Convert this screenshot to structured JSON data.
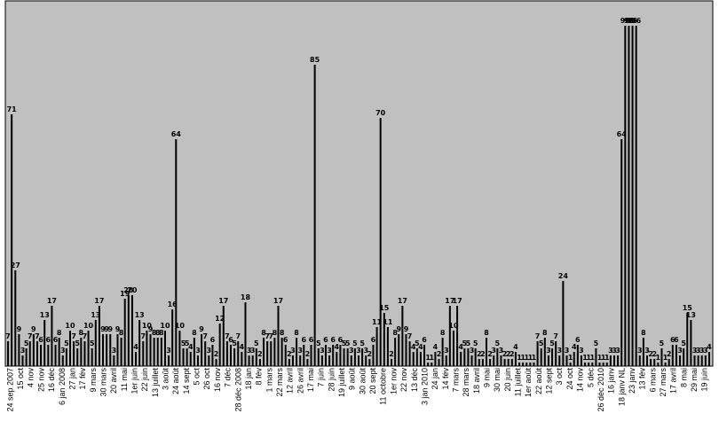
{
  "chart_data": {
    "type": "bar",
    "title": "",
    "xlabel": "",
    "ylabel": "",
    "ylim": [
      0,
      100
    ],
    "grid": false,
    "legend": "none",
    "colors": {
      "plot_background": "#c0c0c0",
      "bar": "#000000",
      "page": "#ffffff"
    },
    "values": [
      7,
      71,
      27,
      9,
      3,
      5,
      7,
      9,
      7,
      6,
      13,
      6,
      17,
      6,
      8,
      3,
      5,
      10,
      7,
      5,
      8,
      7,
      10,
      5,
      13,
      17,
      9,
      9,
      9,
      3,
      9,
      8,
      19,
      20,
      20,
      4,
      13,
      7,
      10,
      9,
      8,
      8,
      8,
      10,
      3,
      16,
      64,
      10,
      5,
      5,
      4,
      8,
      3,
      9,
      7,
      3,
      6,
      2,
      12,
      17,
      7,
      6,
      5,
      7,
      4,
      18,
      3,
      3,
      5,
      2,
      8,
      7,
      7,
      8,
      17,
      8,
      6,
      2,
      3,
      8,
      3,
      6,
      2,
      6,
      85,
      5,
      3,
      6,
      3,
      6,
      4,
      6,
      5,
      5,
      3,
      5,
      3,
      5,
      3,
      2,
      6,
      11,
      70,
      15,
      11,
      2,
      8,
      9,
      17,
      9,
      7,
      4,
      5,
      4,
      6,
      1,
      1,
      4,
      2,
      8,
      3,
      17,
      10,
      17,
      4,
      5,
      5,
      3,
      5,
      2,
      2,
      8,
      2,
      3,
      5,
      3,
      2,
      2,
      2,
      4,
      1,
      1,
      1,
      1,
      1,
      7,
      5,
      8,
      3,
      5,
      7,
      3,
      24,
      3,
      1,
      4,
      6,
      3,
      1,
      1,
      1,
      5,
      1,
      1,
      1,
      3,
      3,
      3,
      64,
      96,
      96,
      96,
      96,
      3,
      8,
      3,
      2,
      2,
      1,
      5,
      1,
      2,
      6,
      6,
      3,
      5,
      15,
      13,
      3,
      3,
      3,
      3,
      4
    ],
    "tick_labels": [
      "24 sep 2007",
      "15 oct",
      "4 nov",
      "25 nov",
      "16 déc",
      "6 jan 2008",
      "27 jan",
      "17 fév",
      "9 mars",
      "30 mars",
      "20 avril",
      "11 mai",
      "1er juin",
      "22 juin",
      "13 juillet",
      "3 août",
      "24 août",
      "14 sept",
      "5 oct",
      "26 oct",
      "16 nov",
      "7 déc",
      "28 déc 2008",
      "18 jan",
      "8 fév",
      "1 mars",
      "22 mars",
      "12 avril",
      "26 avril",
      "17 mai",
      "7 juin",
      "28 juin",
      "19 juillet",
      "9 août",
      "30 août",
      "20 sept",
      "11 octobre",
      "1er nov",
      "22 nov",
      "13 déc",
      "3 jan 2010",
      "24 jan",
      "14 fév",
      "7 mars",
      "28 mars",
      "18 avril",
      "9 mai",
      "30 mai",
      "20 juin",
      "11 juillet",
      "1er août",
      "22 août",
      "12 sept",
      "3 oct",
      "24 oct",
      "14 nov",
      "5 déc",
      "26 déc 2010",
      "16 janv",
      "18 janv NL",
      "23 janv",
      "13 fév",
      "6 mars",
      "27 mars",
      "17 avril",
      "8 mai",
      "29 mai",
      "19 juin"
    ]
  }
}
